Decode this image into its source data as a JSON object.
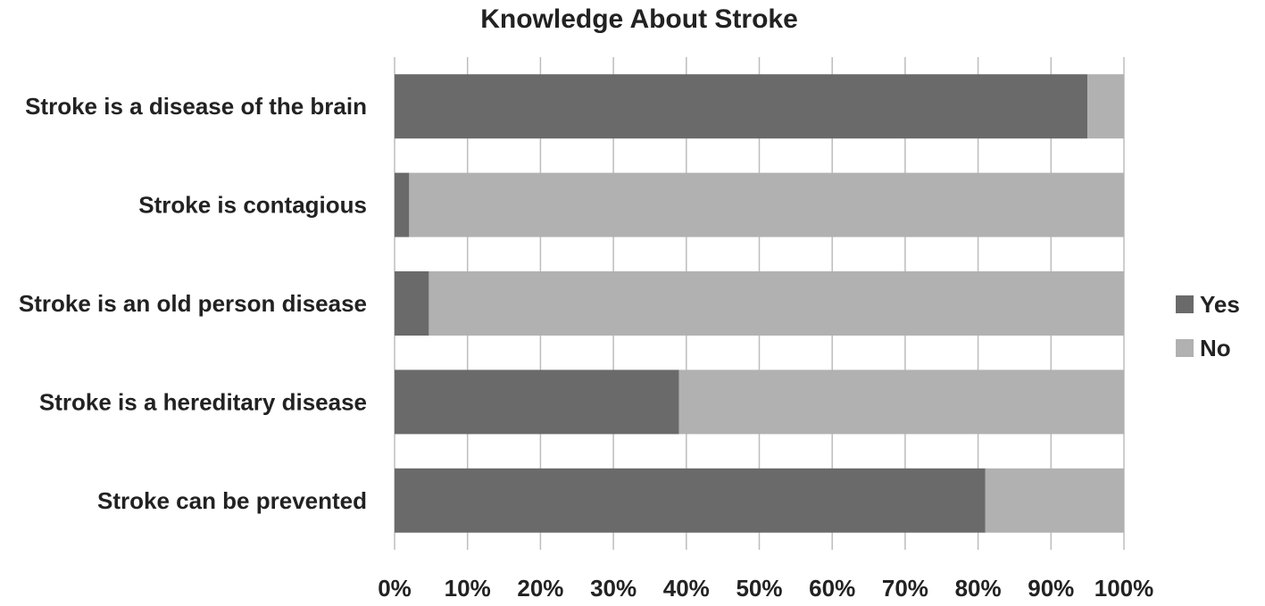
{
  "chart_data": {
    "type": "bar",
    "orientation": "horizontal",
    "stacked": true,
    "percent_stacked": true,
    "title": "Knowledge About Stroke",
    "xlabel": "",
    "ylabel": "",
    "categories": [
      "Stroke is a disease of the brain",
      "Stroke is contagious",
      "Stroke is an old person disease",
      "Stroke is a hereditary disease",
      "Stroke can be prevented"
    ],
    "series": [
      {
        "name": "Yes",
        "color": "#6a6a6a",
        "values": [
          95,
          2,
          4.7,
          39,
          81
        ]
      },
      {
        "name": "No",
        "color": "#b1b1b1",
        "values": [
          5,
          98,
          95.3,
          61,
          19
        ]
      }
    ],
    "xlim": [
      0,
      100
    ],
    "x_ticks": [
      0,
      10,
      20,
      30,
      40,
      50,
      60,
      70,
      80,
      90,
      100
    ],
    "x_tick_labels": [
      "0%",
      "10%",
      "20%",
      "30%",
      "40%",
      "50%",
      "60%",
      "70%",
      "80%",
      "90%",
      "100%"
    ],
    "grid": true,
    "legend_position": "right"
  }
}
